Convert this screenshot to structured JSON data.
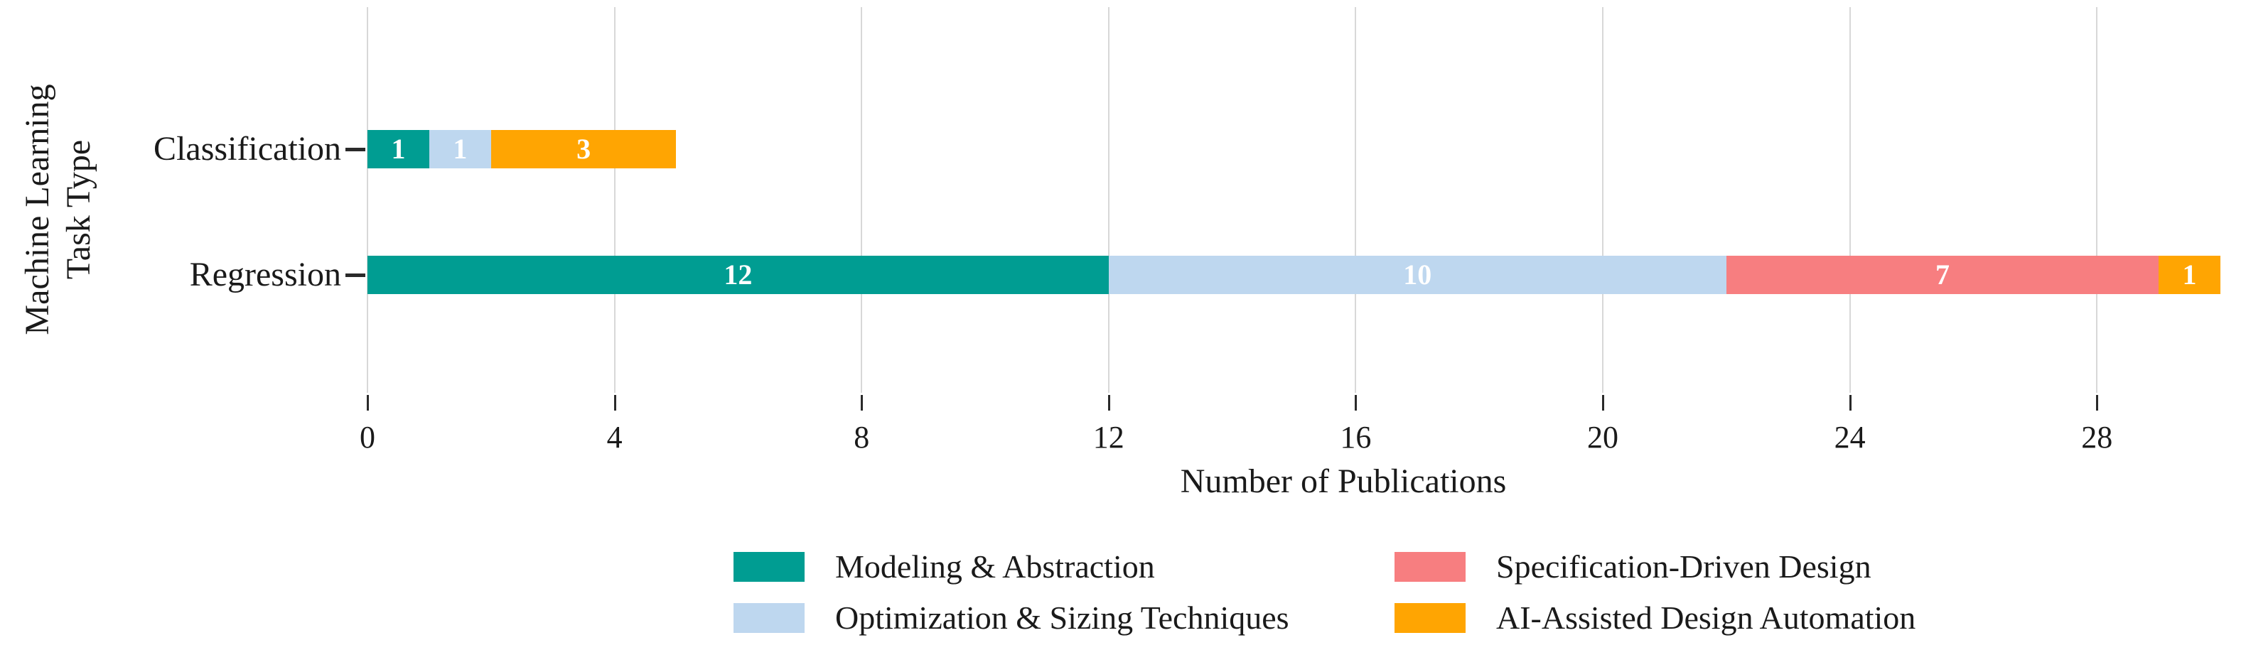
{
  "chart_data": {
    "type": "bar",
    "orientation": "horizontal",
    "stacked": true,
    "xlabel": "Number of Publications",
    "ylabel": "Machine Learning Task Type",
    "ylabel_lines": [
      "Machine Learning",
      "Task Type"
    ],
    "categories": [
      "Classification",
      "Regression"
    ],
    "series": [
      {
        "name": "Modeling & Abstraction",
        "color": "#009D92",
        "values": [
          1,
          12
        ]
      },
      {
        "name": "Optimization & Sizing Techniques",
        "color": "#BED7EF",
        "values": [
          1,
          10
        ]
      },
      {
        "name": "Specification-Driven Design",
        "color": "#F77E80",
        "values": [
          0,
          7
        ]
      },
      {
        "name": "AI-Assisted Design Automation",
        "color": "#FFA502",
        "values": [
          3,
          1
        ]
      }
    ],
    "bar_totals": {
      "Classification": 5,
      "Regression": 30
    },
    "xticks": [
      0,
      4,
      8,
      12,
      16,
      20,
      24,
      28
    ],
    "xlim": [
      0,
      30
    ],
    "grid": "vertical",
    "gridline_color": "#d8d8d8",
    "value_label_color": "#ffffff",
    "legend_position": "bottom",
    "legend_columns": [
      [
        0,
        1
      ],
      [
        2,
        3
      ]
    ]
  }
}
